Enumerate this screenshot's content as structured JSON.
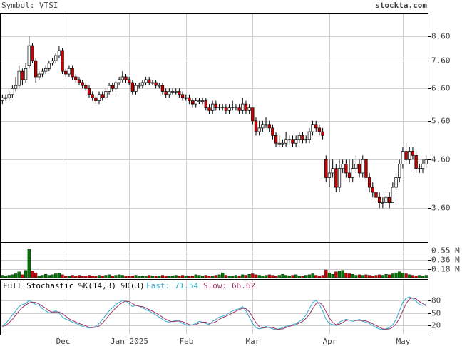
{
  "chart_data": [
    {
      "type": "candlestick",
      "title": "Symbol: VTSI",
      "source": "stockta.com",
      "categories": [
        null,
        null,
        null,
        null,
        null,
        null,
        null,
        null,
        null,
        null,
        null,
        null,
        null,
        null,
        null,
        null,
        null,
        null,
        "Dec",
        null,
        null,
        null,
        null,
        null,
        null,
        null,
        null,
        null,
        null,
        null,
        null,
        null,
        null,
        null,
        null,
        null,
        null,
        null,
        "Jan 2025",
        null,
        null,
        null,
        null,
        null,
        null,
        null,
        null,
        null,
        null,
        null,
        null,
        null,
        null,
        null,
        null,
        "Feb",
        null,
        null,
        null,
        null,
        null,
        null,
        null,
        null,
        null,
        null,
        null,
        null,
        null,
        null,
        null,
        null,
        null,
        null,
        null,
        "Mar",
        null,
        null,
        null,
        null,
        null,
        null,
        null,
        null,
        null,
        null,
        null,
        null,
        null,
        null,
        null,
        null,
        null,
        null,
        null,
        null,
        null,
        null,
        "Apr",
        null,
        null,
        null,
        null,
        null,
        null,
        null,
        null,
        null,
        null,
        null,
        null,
        null,
        null,
        null,
        null,
        null,
        null,
        null,
        null,
        null,
        "May",
        null,
        null,
        null,
        null,
        null,
        null,
        null
      ],
      "open": [
        6.2,
        6.3,
        6.3,
        6.4,
        6.6,
        6.7,
        7.2,
        6.9,
        7.4,
        8.2,
        7.6,
        7.0,
        7.1,
        7.2,
        7.3,
        7.5,
        7.6,
        7.8,
        8.0,
        7.2,
        7.1,
        7.3,
        7.0,
        6.9,
        6.8,
        6.7,
        6.6,
        6.4,
        6.3,
        6.2,
        6.4,
        6.3,
        6.5,
        6.7,
        6.6,
        6.8,
        6.9,
        7.0,
        6.9,
        6.8,
        6.5,
        6.7,
        6.7,
        6.8,
        6.9,
        6.8,
        6.8,
        6.7,
        6.7,
        6.5,
        6.4,
        6.5,
        6.5,
        6.5,
        6.4,
        6.3,
        6.3,
        6.2,
        6.1,
        6.2,
        6.2,
        6.2,
        6.0,
        5.9,
        6.1,
        6.0,
        6.0,
        6.0,
        5.9,
        6.0,
        6.0,
        6.0,
        5.9,
        6.1,
        5.9,
        6.0,
        5.6,
        5.3,
        5.4,
        5.5,
        5.5,
        5.4,
        5.2,
        5.0,
        5.0,
        5.0,
        5.1,
        5.1,
        5.0,
        5.1,
        5.2,
        5.1,
        5.1,
        5.3,
        5.5,
        5.4,
        5.3,
        4.6,
        4.2,
        4.3,
        4.4,
        4.0,
        4.4,
        4.5,
        4.3,
        4.2,
        4.4,
        4.5,
        4.3,
        4.6,
        4.2,
        4.0,
        3.9,
        3.8,
        3.7,
        3.7,
        3.8,
        3.7,
        4.0,
        4.2,
        4.5,
        4.8,
        4.6,
        4.8,
        4.7,
        4.4,
        4.4,
        4.5
      ],
      "high": [
        6.4,
        6.4,
        6.5,
        6.7,
        7.0,
        7.4,
        7.3,
        7.5,
        8.6,
        8.3,
        7.7,
        7.2,
        7.3,
        7.4,
        7.6,
        7.7,
        7.9,
        8.2,
        8.1,
        7.3,
        7.4,
        7.4,
        7.1,
        7.0,
        6.9,
        6.8,
        6.7,
        6.5,
        6.4,
        6.5,
        6.5,
        6.6,
        6.8,
        6.8,
        6.9,
        7.0,
        7.2,
        7.1,
        7.0,
        6.9,
        6.8,
        6.8,
        6.9,
        7.0,
        7.0,
        6.9,
        6.9,
        6.8,
        6.8,
        6.6,
        6.6,
        6.6,
        6.6,
        6.6,
        6.5,
        6.4,
        6.4,
        6.3,
        6.3,
        6.3,
        6.3,
        6.3,
        6.1,
        6.2,
        6.2,
        6.1,
        6.1,
        6.1,
        6.1,
        6.2,
        6.1,
        6.1,
        6.3,
        6.2,
        6.1,
        6.0,
        5.7,
        5.6,
        5.6,
        5.7,
        5.6,
        5.5,
        5.3,
        5.2,
        5.1,
        5.3,
        5.2,
        5.2,
        5.2,
        5.3,
        5.3,
        5.2,
        5.4,
        5.6,
        5.6,
        5.5,
        5.4,
        4.7,
        4.6,
        4.6,
        4.5,
        4.6,
        4.6,
        4.6,
        4.6,
        4.6,
        4.7,
        4.6,
        4.7,
        4.6,
        4.3,
        4.1,
        4.0,
        3.9,
        3.8,
        3.9,
        3.9,
        4.1,
        4.3,
        4.6,
        4.9,
        5.0,
        4.9,
        4.9,
        4.8,
        4.5,
        4.6,
        4.7
      ],
      "low": [
        6.1,
        6.2,
        6.2,
        6.3,
        6.5,
        6.6,
        6.7,
        6.8,
        7.3,
        7.5,
        6.8,
        6.9,
        7.0,
        7.1,
        7.2,
        7.4,
        7.5,
        7.7,
        7.1,
        7.0,
        7.0,
        6.9,
        6.8,
        6.7,
        6.6,
        6.5,
        6.3,
        6.2,
        6.1,
        6.1,
        6.2,
        6.2,
        6.4,
        6.5,
        6.5,
        6.7,
        6.8,
        6.8,
        6.7,
        6.4,
        6.4,
        6.6,
        6.6,
        6.7,
        6.7,
        6.7,
        6.6,
        6.6,
        6.4,
        6.3,
        6.3,
        6.4,
        6.4,
        6.3,
        6.2,
        6.2,
        6.1,
        6.0,
        6.0,
        6.1,
        6.1,
        5.9,
        5.8,
        5.8,
        5.9,
        5.9,
        5.9,
        5.8,
        5.8,
        5.9,
        5.9,
        5.8,
        5.8,
        5.8,
        5.8,
        5.5,
        5.2,
        5.2,
        5.3,
        5.4,
        5.3,
        5.1,
        4.9,
        4.9,
        4.9,
        4.9,
        5.0,
        4.9,
        4.9,
        5.0,
        5.0,
        5.0,
        5.0,
        5.2,
        5.3,
        5.2,
        5.1,
        4.1,
        4.0,
        4.2,
        3.9,
        3.9,
        4.3,
        4.2,
        4.1,
        4.1,
        4.3,
        4.2,
        4.2,
        4.1,
        3.9,
        3.8,
        3.7,
        3.6,
        3.6,
        3.6,
        3.6,
        3.7,
        3.9,
        4.1,
        4.4,
        4.5,
        4.5,
        4.6,
        4.3,
        4.3,
        4.3,
        4.4
      ],
      "close": [
        6.3,
        6.3,
        6.4,
        6.6,
        6.7,
        7.2,
        6.9,
        7.3,
        8.2,
        7.6,
        7.0,
        7.1,
        7.2,
        7.3,
        7.5,
        7.6,
        7.8,
        8.0,
        7.2,
        7.1,
        7.3,
        7.0,
        6.9,
        6.8,
        6.7,
        6.6,
        6.4,
        6.3,
        6.2,
        6.4,
        6.3,
        6.5,
        6.7,
        6.6,
        6.8,
        6.9,
        7.0,
        6.9,
        6.8,
        6.5,
        6.7,
        6.7,
        6.8,
        6.9,
        6.8,
        6.8,
        6.7,
        6.7,
        6.5,
        6.4,
        6.5,
        6.5,
        6.5,
        6.4,
        6.3,
        6.3,
        6.2,
        6.1,
        6.2,
        6.2,
        6.2,
        6.0,
        5.9,
        6.1,
        6.0,
        6.0,
        6.0,
        5.9,
        6.0,
        6.0,
        6.0,
        5.9,
        6.1,
        5.9,
        6.0,
        5.6,
        5.3,
        5.4,
        5.5,
        5.5,
        5.4,
        5.2,
        5.0,
        5.0,
        5.0,
        5.1,
        5.1,
        5.0,
        5.1,
        5.2,
        5.1,
        5.1,
        5.3,
        5.5,
        5.4,
        5.3,
        5.2,
        4.2,
        4.3,
        4.4,
        4.0,
        4.4,
        4.5,
        4.3,
        4.2,
        4.4,
        4.5,
        4.3,
        4.6,
        4.2,
        4.0,
        3.9,
        3.8,
        3.7,
        3.7,
        3.8,
        3.7,
        4.0,
        4.2,
        4.5,
        4.8,
        4.6,
        4.8,
        4.7,
        4.4,
        4.4,
        4.5,
        4.6
      ],
      "log_y": true,
      "ylim": [
        3.03,
        9.65
      ],
      "yticks": [
        {
          "value": 3.6,
          "label": "3.60"
        },
        {
          "value": 4.6,
          "label": "4.60"
        },
        {
          "value": 5.6,
          "label": "5.60"
        },
        {
          "value": 6.6,
          "label": "6.60"
        },
        {
          "value": 7.6,
          "label": "7.60"
        },
        {
          "value": 8.6,
          "label": "8.60"
        }
      ],
      "grid": true,
      "up_color": "#ffffff",
      "down_color": "#cc0000"
    },
    {
      "type": "bar",
      "values": [
        0.05,
        0.04,
        0.05,
        0.06,
        0.08,
        0.12,
        0.06,
        0.15,
        0.58,
        0.14,
        0.1,
        0.04,
        0.05,
        0.07,
        0.05,
        0.06,
        0.08,
        0.09,
        0.06,
        0.04,
        0.03,
        0.05,
        0.04,
        0.05,
        0.03,
        0.04,
        0.05,
        0.04,
        0.03,
        0.05,
        0.04,
        0.05,
        0.06,
        0.04,
        0.05,
        0.06,
        0.05,
        0.04,
        0.03,
        0.04,
        0.05,
        0.04,
        0.03,
        0.04,
        0.05,
        0.04,
        0.03,
        0.04,
        0.05,
        0.04,
        0.03,
        0.04,
        0.05,
        0.04,
        0.05,
        0.04,
        0.03,
        0.04,
        0.06,
        0.05,
        0.04,
        0.05,
        0.04,
        0.03,
        0.05,
        0.06,
        0.1,
        0.05,
        0.04,
        0.03,
        0.05,
        0.04,
        0.06,
        0.05,
        0.07,
        0.08,
        0.06,
        0.05,
        0.04,
        0.05,
        0.06,
        0.05,
        0.04,
        0.05,
        0.07,
        0.05,
        0.04,
        0.05,
        0.06,
        0.04,
        0.03,
        0.05,
        0.06,
        0.08,
        0.05,
        0.04,
        0.05,
        0.16,
        0.1,
        0.07,
        0.12,
        0.14,
        0.15,
        0.09,
        0.08,
        0.07,
        0.05,
        0.06,
        0.05,
        0.06,
        0.05,
        0.04,
        0.05,
        0.06,
        0.05,
        0.07,
        0.06,
        0.08,
        0.1,
        0.12,
        0.09,
        0.08,
        0.06,
        0.05,
        0.04,
        0.05,
        0.04,
        0.05
      ],
      "ylim": [
        0,
        0.7
      ],
      "yticks": [
        {
          "value": 0.18,
          "label": "0.18 M"
        },
        {
          "value": 0.36,
          "label": "0.36 M"
        },
        {
          "value": 0.55,
          "label": "0.55 M"
        }
      ],
      "up_color": "#007a00",
      "down_color": "#cc0000"
    },
    {
      "type": "line",
      "title": "Full Stochastic %K(14,3) %D(3)",
      "series": [
        {
          "name": "Fast:",
          "color": "#33aacc",
          "values": [
            20,
            25,
            35,
            45,
            55,
            65,
            70,
            72,
            80,
            75,
            70,
            68,
            60,
            55,
            50,
            52,
            55,
            50,
            40,
            35,
            32,
            28,
            25,
            22,
            18,
            16,
            14,
            15,
            18,
            25,
            35,
            45,
            55,
            62,
            70,
            75,
            80,
            78,
            72,
            65,
            68,
            66,
            62,
            58,
            55,
            50,
            45,
            40,
            35,
            30,
            28,
            30,
            32,
            30,
            25,
            22,
            20,
            22,
            25,
            30,
            28,
            25,
            22,
            30,
            35,
            40,
            42,
            45,
            50,
            55,
            58,
            60,
            65,
            55,
            40,
            25,
            15,
            12,
            14,
            18,
            15,
            12,
            10,
            12,
            15,
            18,
            20,
            22,
            25,
            30,
            35,
            45,
            60,
            75,
            80,
            70,
            55,
            35,
            25,
            22,
            20,
            28,
            32,
            35,
            33,
            30,
            32,
            35,
            30,
            28,
            25,
            20,
            15,
            12,
            10,
            12,
            15,
            22,
            35,
            55,
            75,
            85,
            88,
            84,
            78,
            70,
            68,
            71.54
          ]
        },
        {
          "name": "Slow:",
          "color": "#993366",
          "values": [
            18,
            20,
            27,
            35,
            45,
            55,
            63,
            69,
            74,
            76,
            75,
            71,
            66,
            61,
            55,
            52,
            52,
            52,
            48,
            42,
            36,
            32,
            28,
            25,
            22,
            19,
            16,
            15,
            16,
            19,
            26,
            35,
            45,
            54,
            62,
            69,
            75,
            78,
            77,
            72,
            68,
            66,
            65,
            62,
            58,
            54,
            50,
            45,
            40,
            35,
            31,
            29,
            30,
            31,
            29,
            26,
            22,
            21,
            22,
            26,
            28,
            28,
            25,
            26,
            29,
            35,
            39,
            42,
            46,
            50,
            54,
            58,
            61,
            60,
            53,
            40,
            27,
            17,
            14,
            15,
            16,
            15,
            12,
            11,
            12,
            15,
            18,
            20,
            22,
            26,
            30,
            37,
            47,
            60,
            72,
            75,
            68,
            53,
            38,
            27,
            22,
            23,
            27,
            32,
            33,
            33,
            32,
            32,
            32,
            31,
            28,
            24,
            20,
            16,
            12,
            11,
            12,
            16,
            24,
            37,
            55,
            72,
            83,
            86,
            83,
            77,
            72,
            66.62
          ]
        }
      ],
      "ylim": [
        0,
        100
      ],
      "yticks": [
        20,
        50,
        80
      ]
    }
  ]
}
